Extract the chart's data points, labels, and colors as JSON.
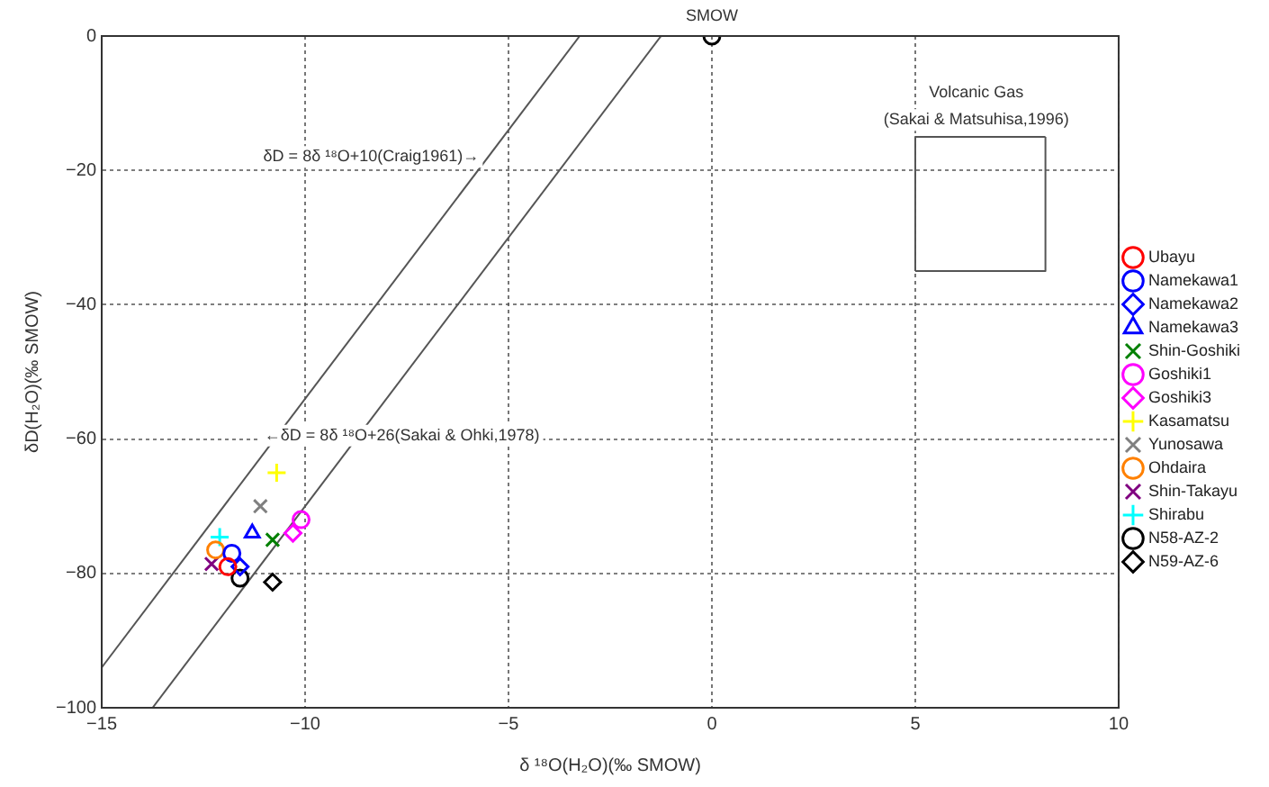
{
  "chart_data": {
    "type": "scatter",
    "xlabel": "δ ¹⁸O(H₂O)(‰ SMOW)",
    "ylabel": "δD(H₂O)(‰ SMOW)",
    "xlim": [
      -15,
      10
    ],
    "xticks": [
      -15,
      -10,
      -5,
      0,
      5,
      10
    ],
    "ylim": [
      -100,
      0
    ],
    "yticks": [
      -100,
      -80,
      -60,
      -40,
      -20,
      0
    ],
    "grid": true,
    "legend": "right",
    "series": [
      {
        "name": "Ubayu",
        "color": "#ff0000",
        "marker": "circle",
        "x": [
          -11.9
        ],
        "values": [
          -79
        ]
      },
      {
        "name": "Namekawa1",
        "color": "#0000ff",
        "marker": "circle",
        "x": [
          -11.8
        ],
        "values": [
          -77
        ]
      },
      {
        "name": "Namekawa2",
        "color": "#0000ff",
        "marker": "diamond",
        "x": [
          -11.6
        ],
        "values": [
          -79
        ]
      },
      {
        "name": "Namekawa3",
        "color": "#0000ff",
        "marker": "triangle",
        "x": [
          -11.3
        ],
        "values": [
          -74
        ]
      },
      {
        "name": "Shin-Goshiki",
        "color": "#008000",
        "marker": "cross",
        "x": [
          -10.8
        ],
        "values": [
          -75
        ]
      },
      {
        "name": "Goshiki1",
        "color": "#ff00ff",
        "marker": "circle",
        "x": [
          -10.1
        ],
        "values": [
          -72
        ]
      },
      {
        "name": "Goshiki3",
        "color": "#ff00ff",
        "marker": "diamond",
        "x": [
          -10.3
        ],
        "values": [
          -74
        ]
      },
      {
        "name": "Kasamatsu",
        "color": "#ffff00",
        "marker": "plus",
        "x": [
          -10.7
        ],
        "values": [
          -65
        ]
      },
      {
        "name": "Yunosawa",
        "color": "#808080",
        "marker": "cross",
        "x": [
          -11.1
        ],
        "values": [
          -70
        ]
      },
      {
        "name": "Ohdaira",
        "color": "#ff8000",
        "marker": "circle",
        "x": [
          -12.2
        ],
        "values": [
          -76.5
        ]
      },
      {
        "name": "Shin-Takayu",
        "color": "#800080",
        "marker": "cross",
        "x": [
          -12.3
        ],
        "values": [
          -78.6
        ]
      },
      {
        "name": "Shirabu",
        "color": "#00ffff",
        "marker": "plus",
        "x": [
          -12.1
        ],
        "values": [
          -74.6
        ]
      },
      {
        "name": "N58-AZ-2",
        "color": "#000000",
        "marker": "circle",
        "x": [
          -11.6
        ],
        "values": [
          -80.7
        ]
      },
      {
        "name": "N59-AZ-6",
        "color": "#000000",
        "marker": "diamond",
        "x": [
          -10.8
        ],
        "values": [
          -81.3
        ]
      },
      {
        "color": "#000000",
        "marker": "circle",
        "x": [
          0
        ],
        "values": [
          0
        ]
      },
      {
        "type": "line",
        "color": "#555555",
        "marker": "none",
        "x": [
          -13.75,
          -1.25
        ],
        "values": [
          -100,
          0
        ]
      },
      {
        "type": "line",
        "color": "#555555",
        "marker": "none",
        "x": [
          -15,
          -3.25
        ],
        "values": [
          -94,
          0
        ]
      },
      {
        "type": "line",
        "color": "#555555",
        "marker": "none",
        "x": [
          5,
          5,
          8.2
        ],
        "values": [
          -35,
          -15,
          -15
        ]
      },
      {
        "type": "line",
        "color": "#555555",
        "marker": "none",
        "x": [
          5,
          8.2,
          8.2
        ],
        "values": [
          -35,
          -35,
          -15
        ]
      }
    ],
    "annotations": [
      {
        "text": "SMOW",
        "x": 0,
        "y": 0
      },
      "δD = 8δ ¹⁸O+10(Craig1961)→",
      "←δD = 8δ ¹⁸O+26(Sakai & Ohki,1978)",
      "Volcanic Gas",
      "(Sakai & Matsuhisa,1996)"
    ]
  }
}
